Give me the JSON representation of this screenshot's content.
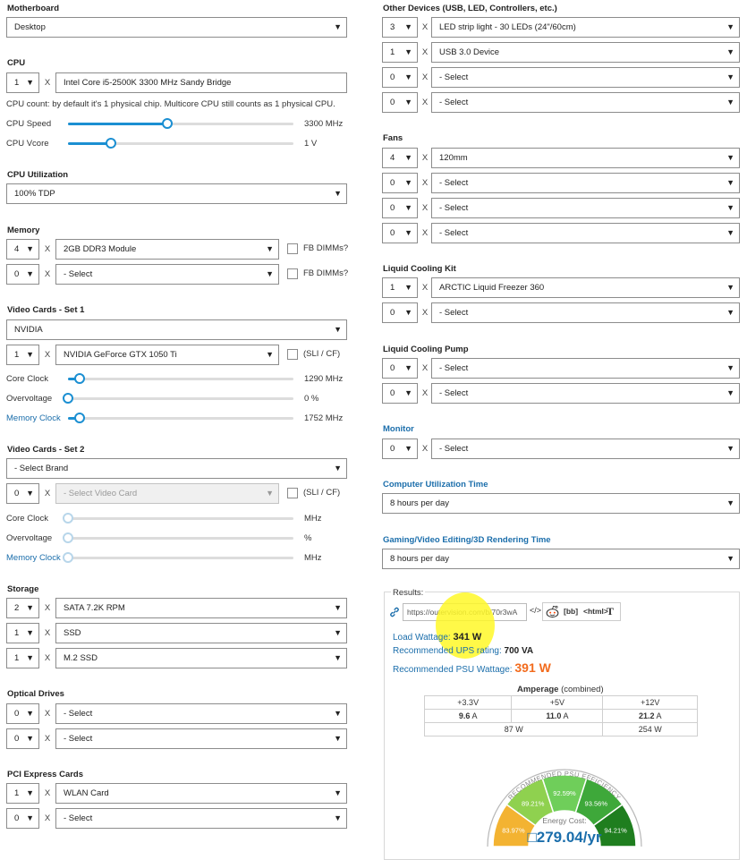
{
  "motherboard": {
    "label": "Motherboard",
    "value": "Desktop"
  },
  "cpu": {
    "label": "CPU",
    "qty": "1",
    "model": "Intel Core i5-2500K 3300 MHz Sandy Bridge",
    "note": "CPU count: by default it's 1 physical chip. Multicore CPU still counts as 1 physical CPU.",
    "speed": {
      "label": "CPU Speed",
      "value": "3300 MHz",
      "level": 0.44
    },
    "vcore": {
      "label": "CPU Vcore",
      "value": "1 V",
      "level": 0.19
    }
  },
  "cpu_util": {
    "label": "CPU Utilization",
    "value": "100% TDP"
  },
  "memory": {
    "label": "Memory",
    "fb_label": "FB DIMMs?",
    "rows": [
      {
        "qty": "4",
        "value": "2GB DDR3 Module"
      },
      {
        "qty": "0",
        "value": "- Select"
      }
    ]
  },
  "video1": {
    "label": "Video Cards - Set 1",
    "brand": "NVIDIA",
    "qty": "1",
    "card": "NVIDIA GeForce GTX 1050 Ti",
    "sli_label": "(SLI / CF)",
    "core": {
      "label": "Core Clock",
      "value": "1290 MHz",
      "level": 0.05
    },
    "overvolt": {
      "label": "Overvoltage",
      "value": "0 %",
      "level": 0.0
    },
    "memclock": {
      "label": "Memory Clock",
      "value": "1752 MHz",
      "level": 0.05
    }
  },
  "video2": {
    "label": "Video Cards - Set 2",
    "brand": "- Select Brand",
    "qty": "0",
    "card": "- Select Video Card",
    "sli_label": "(SLI / CF)",
    "core": {
      "label": "Core Clock",
      "value": "MHz"
    },
    "overvolt": {
      "label": "Overvoltage",
      "value": "%"
    },
    "memclock": {
      "label": "Memory Clock",
      "value": "MHz"
    }
  },
  "storage": {
    "label": "Storage",
    "rows": [
      {
        "qty": "2",
        "value": "SATA 7.2K RPM"
      },
      {
        "qty": "1",
        "value": "SSD"
      },
      {
        "qty": "1",
        "value": "M.2 SSD"
      }
    ]
  },
  "optical": {
    "label": "Optical Drives",
    "rows": [
      {
        "qty": "0",
        "value": "- Select"
      },
      {
        "qty": "0",
        "value": "- Select"
      }
    ]
  },
  "pcie": {
    "label": "PCI Express Cards",
    "rows": [
      {
        "qty": "1",
        "value": "WLAN Card"
      },
      {
        "qty": "0",
        "value": "- Select"
      }
    ]
  },
  "other": {
    "label": "Other Devices (USB, LED, Controllers, etc.)",
    "rows": [
      {
        "qty": "3",
        "value": "LED strip light - 30 LEDs (24\"/60cm)"
      },
      {
        "qty": "1",
        "value": "USB 3.0 Device"
      },
      {
        "qty": "0",
        "value": "- Select"
      },
      {
        "qty": "0",
        "value": "- Select"
      }
    ]
  },
  "fans": {
    "label": "Fans",
    "rows": [
      {
        "qty": "4",
        "value": "120mm"
      },
      {
        "qty": "0",
        "value": "- Select"
      },
      {
        "qty": "0",
        "value": "- Select"
      },
      {
        "qty": "0",
        "value": "- Select"
      }
    ]
  },
  "liquid_kit": {
    "label": "Liquid Cooling Kit",
    "rows": [
      {
        "qty": "1",
        "value": "ARCTIC Liquid Freezer 360"
      },
      {
        "qty": "0",
        "value": "- Select"
      }
    ]
  },
  "liquid_pump": {
    "label": "Liquid Cooling Pump",
    "rows": [
      {
        "qty": "0",
        "value": "- Select"
      },
      {
        "qty": "0",
        "value": "- Select"
      }
    ]
  },
  "monitor": {
    "label": "Monitor",
    "qty": "0",
    "value": "- Select"
  },
  "util_time": {
    "label": "Computer Utilization Time",
    "value": "8 hours per day"
  },
  "gaming_time": {
    "label": "Gaming/Video Editing/3D Rendering Time",
    "value": "8 hours per day"
  },
  "common": {
    "x": "X",
    "arrow": "▼"
  },
  "results": {
    "title": "Results:",
    "url": "https://outervision.com/b/70r3wA",
    "share": {
      "embed": "</>",
      "bb": "[bb]",
      "html": "<html>",
      "text": "T"
    },
    "load_label": "Load Wattage:",
    "load_value": "341 W",
    "ups_label": "Recommended UPS rating:",
    "ups_value": "700 VA",
    "psu_label": "Recommended PSU Wattage:",
    "psu_value": "391 W",
    "amp_title": "Amperage",
    "amp_sub": "(combined)",
    "amp_headers": [
      "+3.3V",
      "+5V",
      "+12V"
    ],
    "amp_values": [
      {
        "num": "9.6",
        "unit": "A"
      },
      {
        "num": "11.0",
        "unit": "A"
      },
      {
        "num": "21.2",
        "unit": "A"
      }
    ],
    "watt_left": "87 W",
    "watt_right": "254 W",
    "gauge_label": "RECOMMENDED PSU EFFICIENCY",
    "gauge_segments": [
      {
        "value": "83.97%",
        "color": "#f3b332"
      },
      {
        "value": "89.21%",
        "color": "#8fd14f"
      },
      {
        "value": "92.59%",
        "color": "#6fce5a"
      },
      {
        "value": "93.56%",
        "color": "#3ea83a"
      },
      {
        "value": "94.21%",
        "color": "#1f7e1f"
      }
    ],
    "energy_label": "Energy Cost:",
    "energy_value": "279.04/yr",
    "energy_symbol": "□"
  }
}
